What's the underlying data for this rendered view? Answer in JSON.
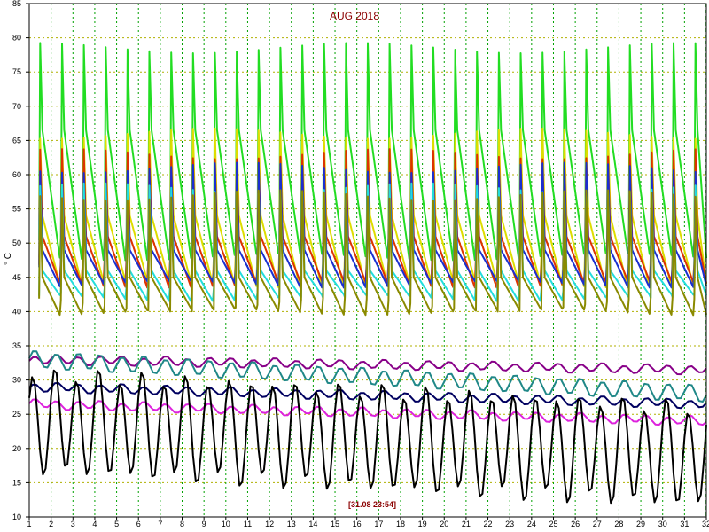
{
  "chart_data": {
    "type": "line",
    "title": "AUG 2018",
    "stamp": "[31.08 23:54]",
    "ylabel": "° C",
    "xlabel": "",
    "xlim": [
      1,
      32
    ],
    "ylim": [
      10,
      85
    ],
    "x_ticks": [
      1,
      2,
      3,
      4,
      5,
      6,
      7,
      8,
      9,
      10,
      11,
      12,
      13,
      14,
      15,
      16,
      17,
      18,
      19,
      20,
      21,
      22,
      23,
      24,
      25,
      26,
      27,
      28,
      29,
      30,
      31,
      32
    ],
    "y_ticks": [
      10,
      15,
      20,
      25,
      30,
      35,
      40,
      45,
      50,
      55,
      60,
      65,
      70,
      75,
      80,
      85
    ],
    "grid": true,
    "grid_style": "dotted",
    "colors": {
      "grid_x": "#00a000",
      "grid_y": "#b0b000",
      "frame": "#000000",
      "marker_line": "#00a000"
    },
    "series": [
      {
        "color": "#22dd22",
        "kind": "daily-peak",
        "peak": 78.5,
        "low": 50,
        "decay_to": 48
      },
      {
        "color": "#dddd00",
        "kind": "daily-peak",
        "peak": 66,
        "low": 48,
        "decay_to": 44
      },
      {
        "color": "#dd3300",
        "kind": "daily-peak",
        "peak": 63,
        "low": 47,
        "decay_to": 44
      },
      {
        "color": "#1a2fd0",
        "kind": "daily-peak",
        "peak": 61,
        "low": 46,
        "decay_to": 44
      },
      {
        "color": "#22dddd",
        "kind": "daily-peak",
        "peak": 58,
        "low": 43,
        "decay_to": 42
      },
      {
        "color": "#8a8a00",
        "kind": "daily-peak",
        "peak": 57,
        "low": 41,
        "decay_to": 40
      },
      {
        "color": "#880088",
        "kind": "slow",
        "start": 33,
        "end": 31.5
      },
      {
        "color": "#208888",
        "kind": "slow-bumpy",
        "start": 33,
        "end": 28
      },
      {
        "color": "#000060",
        "kind": "slow",
        "start": 29,
        "end": 26.5
      },
      {
        "color": "#dd22dd",
        "kind": "flat",
        "start": 26.5,
        "end": 24
      },
      {
        "color": "#000000",
        "kind": "daily-wave",
        "mid": 24,
        "amp": 8,
        "end_mid": 19
      }
    ]
  }
}
